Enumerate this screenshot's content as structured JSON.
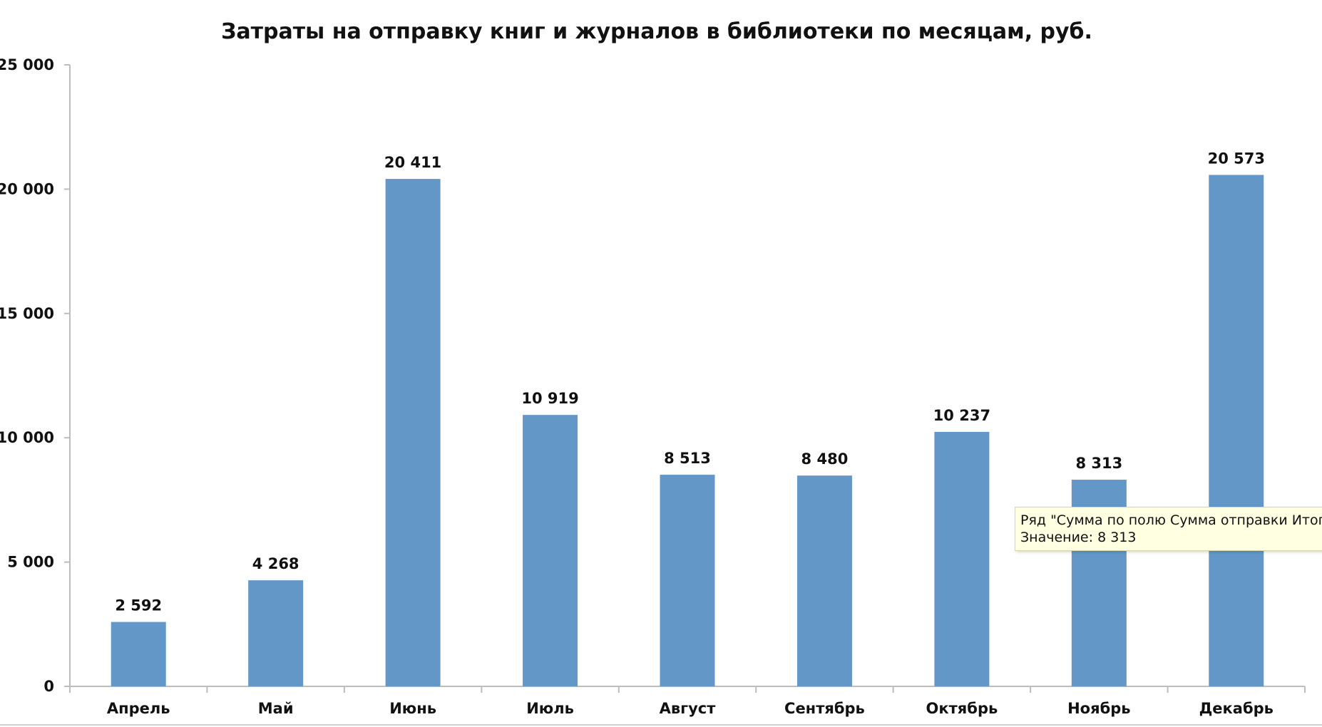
{
  "chart_data": {
    "type": "bar",
    "title": "Затраты на отправку книг и журналов в библиотеки по месяцам, руб.",
    "xlabel": "",
    "ylabel": "",
    "categories": [
      "Апрель",
      "Май",
      "Июнь",
      "Июль",
      "Август",
      "Сентябрь",
      "Октябрь",
      "Ноябрь",
      "Декабрь"
    ],
    "values": [
      2592,
      4268,
      20411,
      10919,
      8513,
      8480,
      10237,
      8313,
      20573
    ],
    "data_labels": [
      "2 592",
      "4 268",
      "20 411",
      "10 919",
      "8 513",
      "8 480",
      "10 237",
      "8 313",
      "20 573"
    ],
    "ylim": [
      0,
      25000
    ],
    "yticks": [
      0,
      5000,
      10000,
      15000,
      20000,
      25000
    ],
    "ytick_labels": [
      "0",
      "5 000",
      "10 000",
      "15 000",
      "20 000",
      "25 000"
    ],
    "grid": false,
    "legend": "none",
    "bar_color": "#6397c7"
  },
  "tooltip": {
    "line1": "Ряд \"Сумма по полю Сумма отправки Итог\"",
    "line2": "Значение: 8 313"
  }
}
